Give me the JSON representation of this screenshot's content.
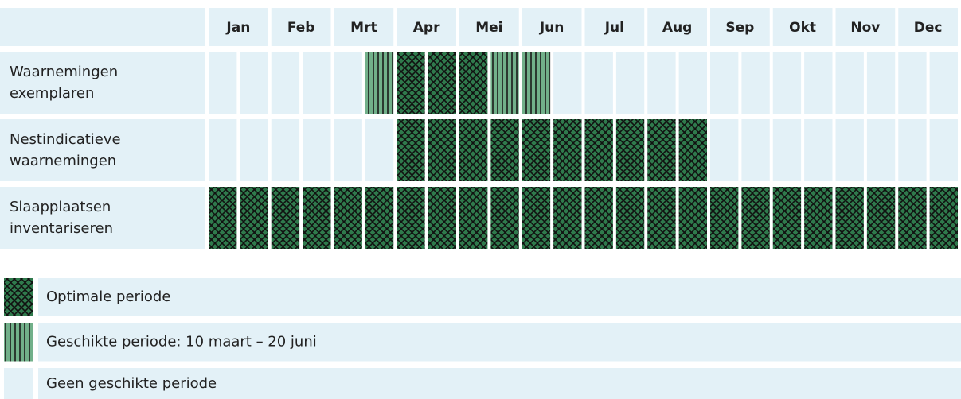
{
  "header": {
    "months": [
      "Jan",
      "Feb",
      "Mrt",
      "Apr",
      "Mei",
      "Jun",
      "Jul",
      "Aug",
      "Sep",
      "Okt",
      "Nov",
      "Dec"
    ]
  },
  "rows": [
    {
      "label": "Waarnemingen exemplaren",
      "periods": [
        2,
        2,
        2,
        2,
        2,
        1,
        0,
        0,
        0,
        1,
        1,
        2,
        2,
        2,
        2,
        2,
        2,
        2,
        2,
        2,
        2,
        2,
        2,
        2
      ]
    },
    {
      "label": "Nestindicatieve waarnemingen",
      "periods": [
        2,
        2,
        2,
        2,
        2,
        2,
        0,
        0,
        0,
        0,
        0,
        0,
        0,
        0,
        0,
        0,
        2,
        2,
        2,
        2,
        2,
        2,
        2,
        2
      ]
    },
    {
      "label": "Slaapplaatsen inventariseren",
      "periods": [
        0,
        0,
        0,
        0,
        0,
        0,
        0,
        0,
        0,
        0,
        0,
        0,
        0,
        0,
        0,
        0,
        0,
        0,
        0,
        0,
        0,
        0,
        0,
        0
      ]
    }
  ],
  "legend": [
    {
      "label": "Optimale periode",
      "pattern": "crosshatch"
    },
    {
      "label": "Geschikte periode: 10 maart – 20 juni",
      "pattern": "stripes"
    },
    {
      "label": "Geen geschikte periode",
      "pattern": "none"
    }
  ]
}
